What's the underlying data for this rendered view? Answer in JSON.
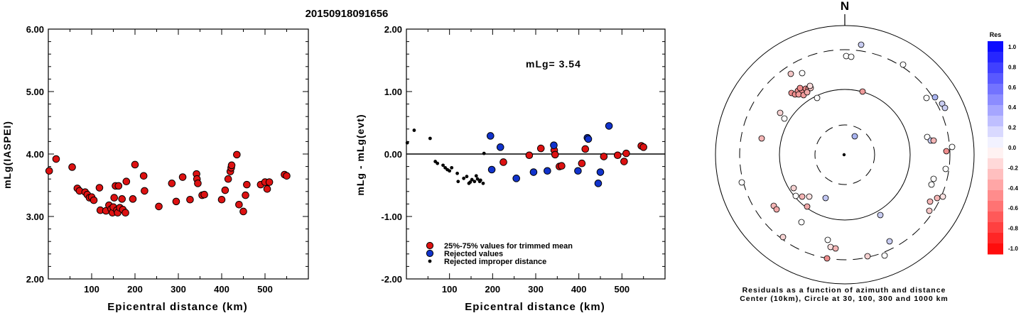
{
  "event_id": "20150918091656",
  "chart_data": [
    {
      "type": "scatter",
      "xlabel": "Epicentral distance (km)",
      "ylabel": "mLg(IASPEI)",
      "xlim": [
        0,
        600
      ],
      "ylim": [
        2.0,
        6.0
      ],
      "x_ticks": [
        "100",
        "200",
        "300",
        "400",
        "500"
      ],
      "y_ticks": [
        "2.00",
        "3.00",
        "4.00",
        "5.00",
        "6.00"
      ],
      "series": [
        {
          "color": "#dd1111",
          "points": [
            [
              2,
              3.73
            ],
            [
              18,
              3.92
            ],
            [
              55,
              3.79
            ],
            [
              67,
              3.45
            ],
            [
              72,
              3.41
            ],
            [
              85,
              3.39
            ],
            [
              90,
              3.35
            ],
            [
              95,
              3.3
            ],
            [
              100,
              3.31
            ],
            [
              105,
              3.26
            ],
            [
              118,
              3.46
            ],
            [
              120,
              3.1
            ],
            [
              133,
              3.09
            ],
            [
              140,
              3.18
            ],
            [
              145,
              3.12
            ],
            [
              148,
              3.06
            ],
            [
              150,
              3.15
            ],
            [
              152,
              3.3
            ],
            [
              155,
              3.49
            ],
            [
              158,
              3.1
            ],
            [
              160,
              3.06
            ],
            [
              162,
              3.49
            ],
            [
              165,
              3.14
            ],
            [
              170,
              3.28
            ],
            [
              172,
              3.11
            ],
            [
              178,
              3.06
            ],
            [
              180,
              3.56
            ],
            [
              195,
              3.28
            ],
            [
              200,
              3.83
            ],
            [
              220,
              3.65
            ],
            [
              222,
              3.41
            ],
            [
              255,
              3.16
            ],
            [
              285,
              3.53
            ],
            [
              295,
              3.24
            ],
            [
              310,
              3.63
            ],
            [
              327,
              3.27
            ],
            [
              342,
              3.68
            ],
            [
              343,
              3.6
            ],
            [
              345,
              3.53
            ],
            [
              355,
              3.34
            ],
            [
              360,
              3.35
            ],
            [
              400,
              3.27
            ],
            [
              408,
              3.42
            ],
            [
              415,
              3.6
            ],
            [
              420,
              3.72
            ],
            [
              422,
              3.78
            ],
            [
              423,
              3.82
            ],
            [
              435,
              3.99
            ],
            [
              440,
              3.19
            ],
            [
              450,
              3.08
            ],
            [
              455,
              3.34
            ],
            [
              458,
              3.51
            ],
            [
              490,
              3.51
            ],
            [
              500,
              3.55
            ],
            [
              505,
              3.44
            ],
            [
              510,
              3.55
            ],
            [
              545,
              3.67
            ],
            [
              550,
              3.65
            ]
          ]
        }
      ]
    },
    {
      "type": "scatter",
      "xlabel": "Epicentral distance (km)",
      "ylabel": "mLg - mLg(evt)",
      "xlim": [
        0,
        600
      ],
      "ylim": [
        -2.0,
        2.0
      ],
      "x_ticks": [
        "100",
        "200",
        "300",
        "400",
        "500"
      ],
      "y_ticks": [
        "-2.00",
        "-1.00",
        "0.00",
        "1.00",
        "2.00"
      ],
      "annotation": "mLg= 3.54",
      "legend": [
        {
          "label": "25%-75% values for trimmed mean",
          "color": "#dd1111"
        },
        {
          "label": "Rejected values",
          "color": "#1133cc"
        },
        {
          "label": "Rejected improper distance",
          "color": "#000000"
        }
      ],
      "series": [
        {
          "name": "25%-75% values for trimmed mean",
          "color": "#dd1111",
          "points": [
            [
              225,
              -0.13
            ],
            [
              285,
              -0.02
            ],
            [
              312,
              0.09
            ],
            [
              343,
              0.06
            ],
            [
              345,
              -0.01
            ],
            [
              355,
              -0.2
            ],
            [
              360,
              -0.19
            ],
            [
              407,
              -0.15
            ],
            [
              415,
              0.08
            ],
            [
              458,
              -0.04
            ],
            [
              490,
              -0.02
            ],
            [
              505,
              -0.12
            ],
            [
              510,
              0.01
            ],
            [
              545,
              0.13
            ],
            [
              550,
              0.11
            ]
          ]
        },
        {
          "name": "Rejected values",
          "color": "#1133cc",
          "points": [
            [
              195,
              0.29
            ],
            [
              198,
              -0.25
            ],
            [
              218,
              0.11
            ],
            [
              255,
              -0.39
            ],
            [
              295,
              -0.29
            ],
            [
              327,
              -0.27
            ],
            [
              342,
              0.14
            ],
            [
              398,
              -0.27
            ],
            [
              420,
              0.26
            ],
            [
              422,
              0.24
            ],
            [
              450,
              -0.29
            ],
            [
              445,
              -0.47
            ],
            [
              470,
              0.45
            ]
          ]
        },
        {
          "name": "Rejected improper distance",
          "color": "#000000",
          "points": [
            [
              2,
              0.18
            ],
            [
              18,
              0.38
            ],
            [
              55,
              0.25
            ],
            [
              67,
              -0.12
            ],
            [
              72,
              -0.15
            ],
            [
              85,
              -0.18
            ],
            [
              90,
              -0.22
            ],
            [
              95,
              -0.25
            ],
            [
              100,
              -0.27
            ],
            [
              105,
              -0.22
            ],
            [
              118,
              -0.31
            ],
            [
              120,
              -0.44
            ],
            [
              133,
              -0.39
            ],
            [
              140,
              -0.36
            ],
            [
              145,
              -0.47
            ],
            [
              148,
              -0.45
            ],
            [
              152,
              -0.41
            ],
            [
              158,
              -0.44
            ],
            [
              162,
              -0.35
            ],
            [
              165,
              -0.4
            ],
            [
              170,
              -0.44
            ],
            [
              172,
              -0.42
            ],
            [
              178,
              -0.47
            ],
            [
              180,
              0.01
            ]
          ]
        }
      ]
    }
  ],
  "polar_plot": {
    "north_label": "N",
    "caption_line1": "Residuals as a function of azimuth and distance",
    "caption_line2": "Center (10km), Circle at 30, 100, 300 and 1000 km"
  },
  "color_scale": {
    "title": "Res",
    "ticks": [
      "1.0",
      "0.8",
      "0.6",
      "0.4",
      "0.2",
      "0.0",
      "-0.2",
      "-0.4",
      "-0.6",
      "-0.8",
      "-1.0"
    ],
    "positive_color": "#0000ff",
    "negative_color": "#ff0000"
  }
}
